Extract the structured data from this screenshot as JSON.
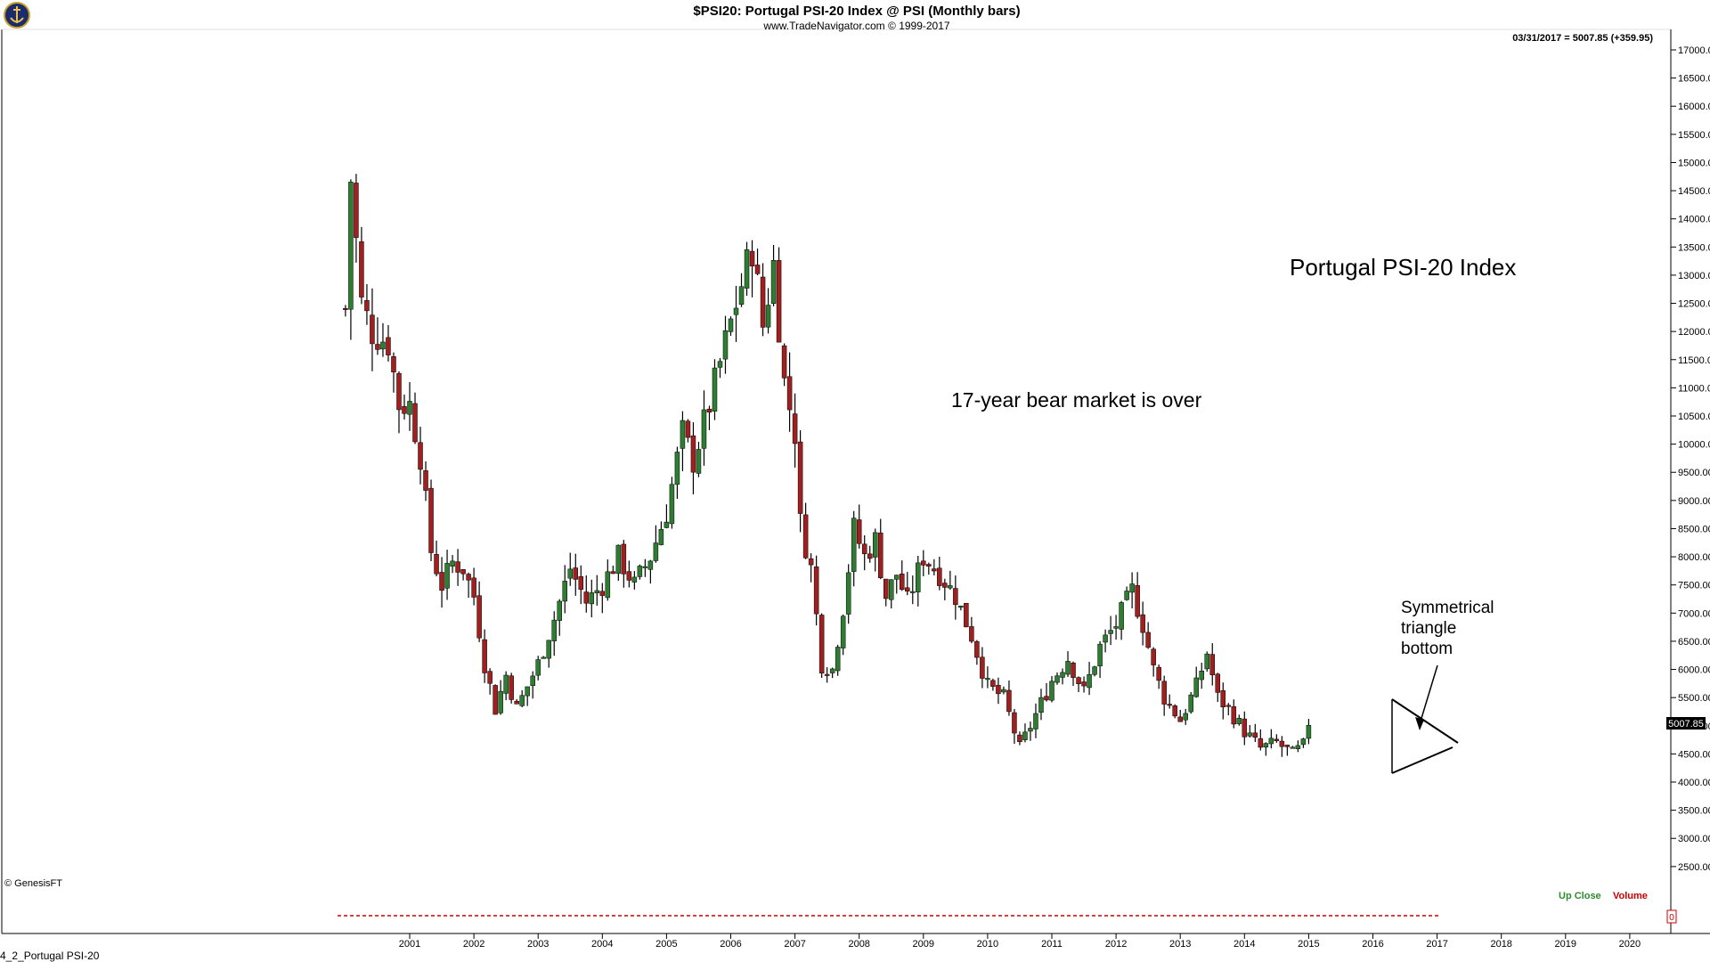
{
  "header": {
    "title": "$PSI20:  Portugal PSI-20 Index @ PSI  (Monthly bars)",
    "subtitle": "www.TradeNavigator.com © 1999-2017",
    "last_bar_info": "03/31/2017 = 5007.85 (+359.95)"
  },
  "copyright": "© GenesisFT",
  "footer_caption": "4_2_Portugal PSI-20",
  "price_badge": "5007.85",
  "legend": {
    "up_close": "Up Close",
    "volume": "Volume"
  },
  "volume_marker": "0",
  "colors": {
    "up": "#2e7d32",
    "down": "#a01f1f",
    "axis": "#000000",
    "accent_red": "#cc0000",
    "accent_green": "#2e8b2e"
  },
  "annotations": [
    {
      "id": "main-title",
      "text": "Portugal PSI-20 Index"
    },
    {
      "id": "bear-market",
      "text": "17-year bear market is over"
    },
    {
      "id": "triangle",
      "lines": [
        "Symmetrical",
        "triangle",
        "bottom"
      ]
    }
  ],
  "chart_data": {
    "type": "candlestick",
    "title": "$PSI20:  Portugal PSI-20 Index @ PSI  (Monthly bars)",
    "x_axis": {
      "ticks": [
        "2001",
        "2002",
        "2003",
        "2004",
        "2005",
        "2006",
        "2007",
        "2008",
        "2009",
        "2010",
        "2011",
        "2012",
        "2013",
        "2014",
        "2015",
        "2016",
        "2017",
        "2018",
        "2019",
        "2020"
      ],
      "range": [
        2000.05,
        2021.0
      ]
    },
    "y_axis": {
      "ticks": [
        "17000.0",
        "16500.0",
        "16000.0",
        "15500.0",
        "15000.0",
        "14500.0",
        "14000.0",
        "13500.0",
        "13000.0",
        "12500.0",
        "12000.0",
        "11500.0",
        "11000.0",
        "10500.0",
        "10000.0",
        "9500.00",
        "9000.00",
        "8500.00",
        "8000.00",
        "7500.00",
        "7000.00",
        "6500.00",
        "6000.00",
        "5500.00",
        "5000.00",
        "4500.00",
        "4000.00",
        "3500.00",
        "3000.00",
        "2500.00"
      ],
      "range": [
        2300,
        17200
      ],
      "position": "right"
    },
    "last_close": 5007.85,
    "close_path": [
      [
        "2000-01",
        12400
      ],
      [
        "2000-02",
        14700
      ],
      [
        "2000-04",
        12500
      ],
      [
        "2000-06",
        12000
      ],
      [
        "2000-09",
        11800
      ],
      [
        "2000-11",
        10700
      ],
      [
        "2001-01",
        10700
      ],
      [
        "2001-03",
        9800
      ],
      [
        "2001-05",
        8100
      ],
      [
        "2001-07",
        7500
      ],
      [
        "2001-09",
        7900
      ],
      [
        "2001-11",
        7800
      ],
      [
        "2002-01",
        7300
      ],
      [
        "2002-03",
        6100
      ],
      [
        "2002-05",
        5300
      ],
      [
        "2002-07",
        5900
      ],
      [
        "2002-09",
        5300
      ],
      [
        "2002-11",
        5700
      ],
      [
        "2003-01",
        6100
      ],
      [
        "2003-04",
        6900
      ],
      [
        "2003-07",
        7800
      ],
      [
        "2003-10",
        7200
      ],
      [
        "2004-01",
        7500
      ],
      [
        "2004-04",
        8000
      ],
      [
        "2004-07",
        7500
      ],
      [
        "2004-10",
        8000
      ],
      [
        "2005-01",
        8800
      ],
      [
        "2005-04",
        10200
      ],
      [
        "2005-06",
        9700
      ],
      [
        "2005-09",
        10700
      ],
      [
        "2005-12",
        11800
      ],
      [
        "2006-02",
        12500
      ],
      [
        "2006-05",
        13500
      ],
      [
        "2006-07",
        12100
      ],
      [
        "2006-09",
        13200
      ],
      [
        "2006-11",
        11100
      ],
      [
        "2007-01",
        10200
      ],
      [
        "2007-02",
        8600
      ],
      [
        "2007-04",
        7800
      ],
      [
        "2007-06",
        6100
      ],
      [
        "2007-08",
        6000
      ],
      [
        "2007-10",
        7100
      ],
      [
        "2007-12",
        8500
      ],
      [
        "2008-02",
        8000
      ],
      [
        "2008-04",
        8300
      ],
      [
        "2008-06",
        7300
      ],
      [
        "2008-08",
        7700
      ],
      [
        "2008-10",
        7200
      ],
      [
        "2009-01",
        8000
      ],
      [
        "2009-04",
        7700
      ],
      [
        "2009-07",
        7300
      ],
      [
        "2009-10",
        6600
      ],
      [
        "2010-01",
        5700
      ],
      [
        "2010-04",
        5500
      ],
      [
        "2010-07",
        4600
      ],
      [
        "2010-10",
        5200
      ],
      [
        "2011-01",
        5800
      ],
      [
        "2011-04",
        6200
      ],
      [
        "2011-07",
        5600
      ],
      [
        "2011-10",
        6400
      ],
      [
        "2012-01",
        6800
      ],
      [
        "2012-04",
        7400
      ],
      [
        "2012-06",
        6800
      ],
      [
        "2012-08",
        6000
      ],
      [
        "2012-10",
        5500
      ],
      [
        "2013-01",
        5100
      ],
      [
        "2013-04",
        5700
      ],
      [
        "2013-06",
        6300
      ],
      [
        "2013-08",
        5500
      ],
      [
        "2013-10",
        5300
      ],
      [
        "2014-01",
        4900
      ],
      [
        "2014-04",
        4600
      ],
      [
        "2014-07",
        4700
      ],
      [
        "2014-10",
        4500
      ],
      [
        "2014-12",
        4650
      ],
      [
        "2015-01",
        5010
      ]
    ]
  }
}
